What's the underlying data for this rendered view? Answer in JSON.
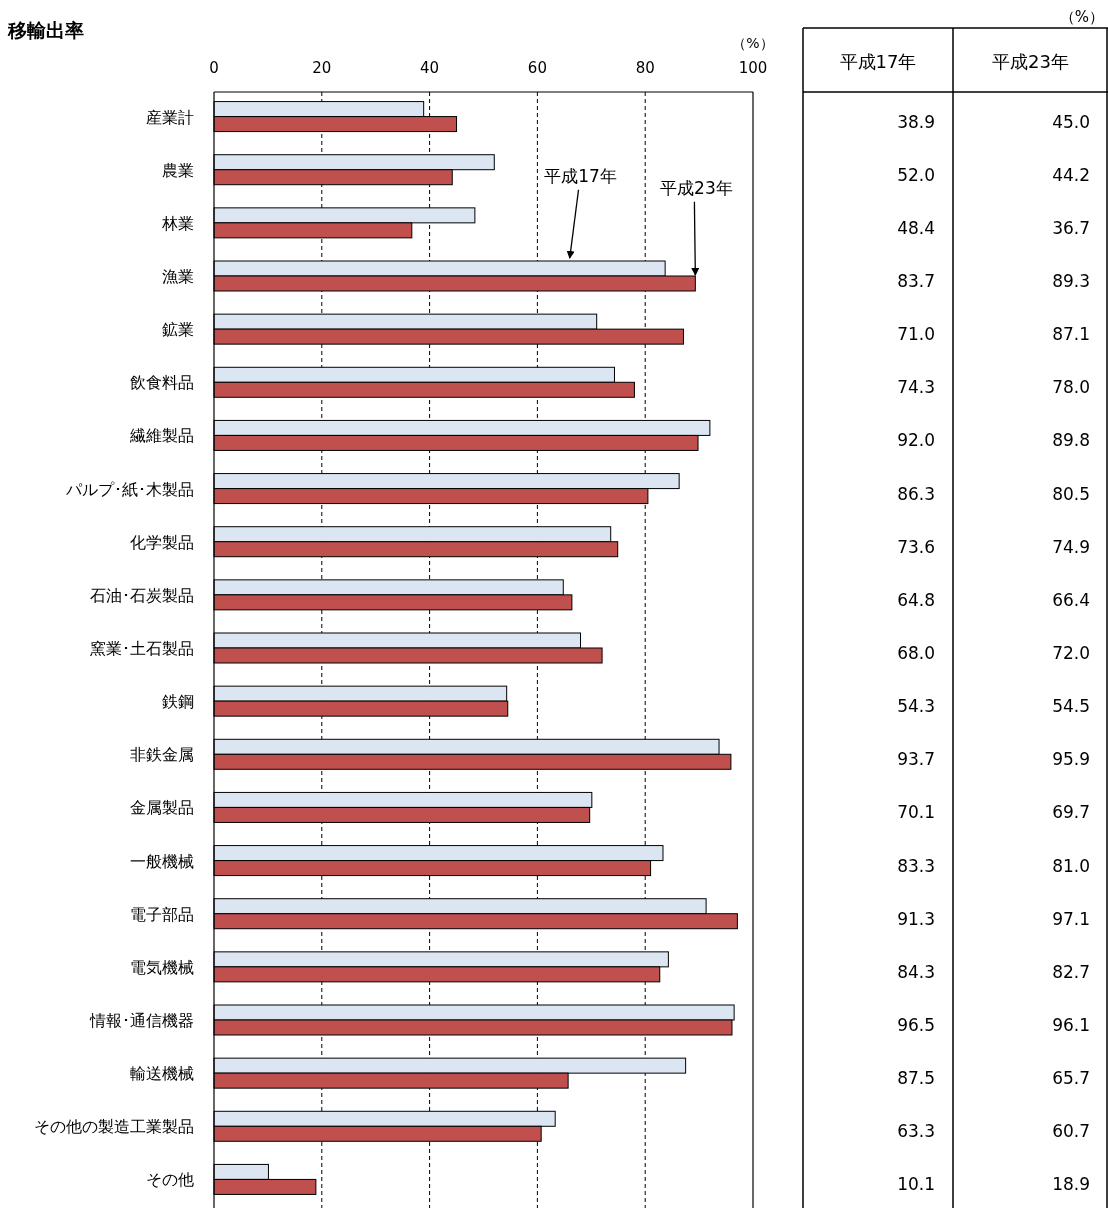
{
  "chart_data": {
    "type": "bar",
    "orientation": "horizontal",
    "title": "移輸出率",
    "xlabel": "（%）",
    "categories": [
      "産業計",
      "農業",
      "林業",
      "漁業",
      "鉱業",
      "飲食料品",
      "繊維製品",
      "パルプ･紙･木製品",
      "化学製品",
      "石油･石炭製品",
      "窯業･土石製品",
      "鉄鋼",
      "非鉄金属",
      "金属製品",
      "一般機械",
      "電子部品",
      "電気機械",
      "情報･通信機器",
      "輸送機械",
      "その他の製造工業製品",
      "その他"
    ],
    "series": [
      {
        "name": "平成17年",
        "color": "#dce6f2",
        "values": [
          38.9,
          52.0,
          48.4,
          83.7,
          71.0,
          74.3,
          92.0,
          86.3,
          73.6,
          64.8,
          68.0,
          54.3,
          93.7,
          70.1,
          83.3,
          91.3,
          84.3,
          96.5,
          87.5,
          63.3,
          10.1
        ],
        "value_labels": [
          "38.9",
          "52.0",
          "48.4",
          "83.7",
          "71.0",
          "74.3",
          "92.0",
          "86.3",
          "73.6",
          "64.8",
          "68.0",
          "54.3",
          "93.7",
          "70.1",
          "83.3",
          "91.3",
          "84.3",
          "96.5",
          "87.5",
          "63.3",
          "10.1"
        ]
      },
      {
        "name": "平成23年",
        "color": "#c0504d",
        "values": [
          45.0,
          44.2,
          36.7,
          89.3,
          87.1,
          78.0,
          89.8,
          80.5,
          74.9,
          66.4,
          72.0,
          54.5,
          95.9,
          69.7,
          81.0,
          97.1,
          82.7,
          96.1,
          65.7,
          60.7,
          18.9
        ],
        "value_labels": [
          "45.0",
          "44.2",
          "36.7",
          "89.3",
          "87.1",
          "78.0",
          "89.8",
          "80.5",
          "74.9",
          "66.4",
          "72.0",
          "54.5",
          "95.9",
          "69.7",
          "81.0",
          "97.1",
          "82.7",
          "96.1",
          "65.7",
          "60.7",
          "18.9"
        ]
      }
    ],
    "xlim": [
      0,
      100
    ],
    "xticks": [
      0,
      20,
      40,
      60,
      80,
      100
    ],
    "grid": "x",
    "legend": false,
    "annotations": [
      "（%）"
    ]
  }
}
